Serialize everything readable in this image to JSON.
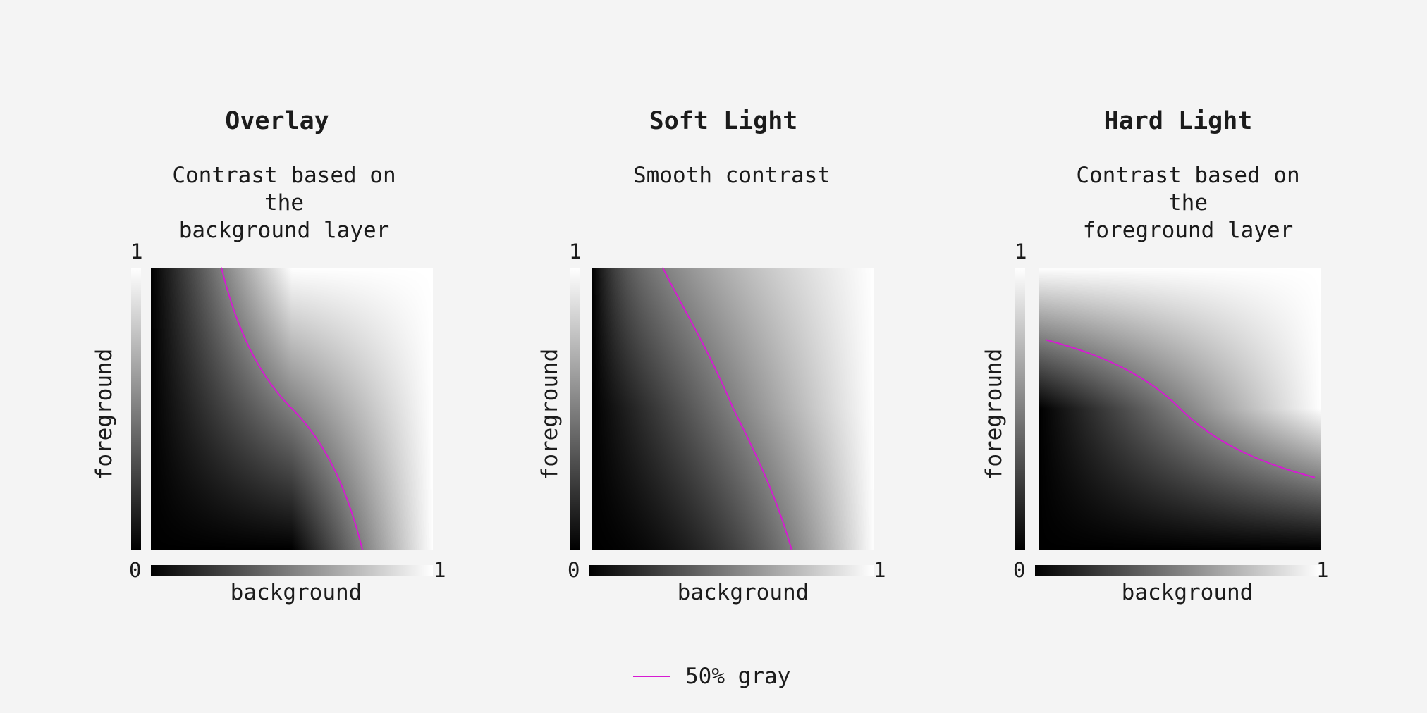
{
  "colors": {
    "background": "#f4f4f4",
    "text": "#1b1b1b",
    "curve": "#d61ad2"
  },
  "axes": {
    "x_label": "background",
    "y_label": "foreground",
    "min_label": "0",
    "max_label": "1"
  },
  "panels": [
    {
      "title": "Overlay",
      "subtitle": "Contrast based on the\nbackground layer",
      "blend_mode": "overlay"
    },
    {
      "title": "Soft Light",
      "subtitle": "Smooth contrast",
      "blend_mode": "soft-light"
    },
    {
      "title": "Hard Light",
      "subtitle": "Contrast based on the\nforeground layer",
      "blend_mode": "hard-light"
    }
  ],
  "legend": {
    "label": "50% gray",
    "level": 0.5
  }
}
